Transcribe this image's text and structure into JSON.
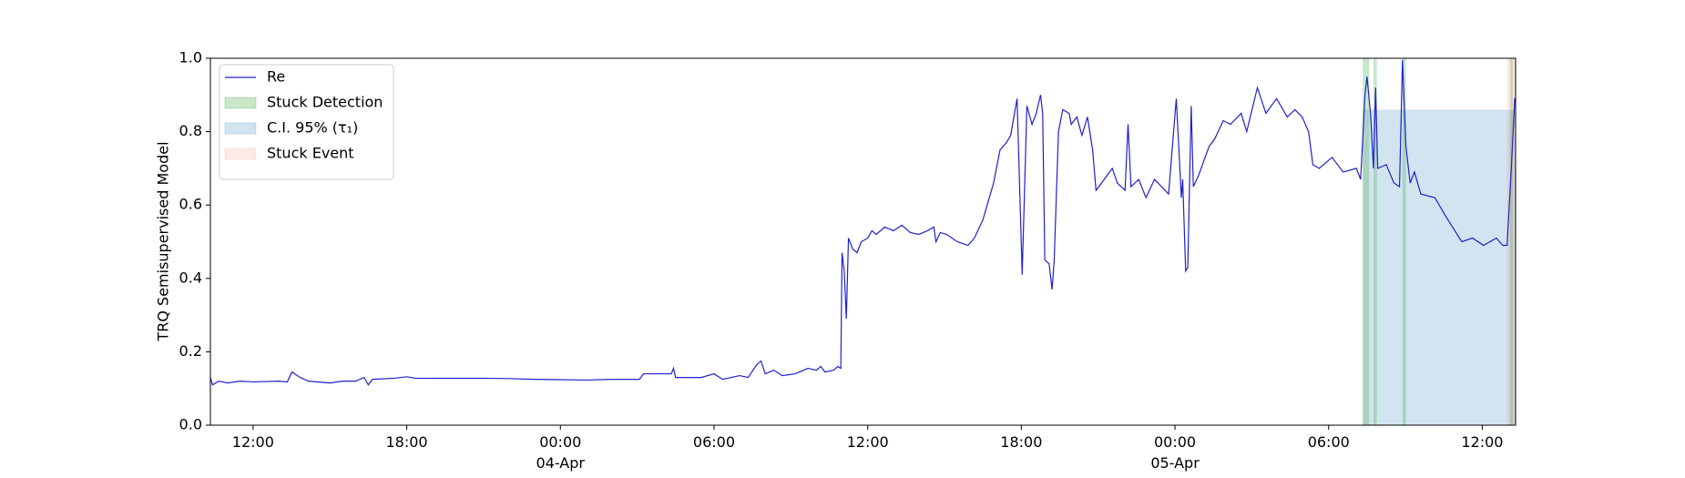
{
  "chart_data": {
    "type": "line",
    "ylabel": "TRQ Semisupervised Model",
    "xlim": [
      "1900-04-03 10:20",
      "1900-04-05 13:18"
    ],
    "ylim": [
      0,
      1
    ],
    "yticks": [
      {
        "value": 0,
        "label": "0.0"
      },
      {
        "value": 0.2,
        "label": "0.2"
      },
      {
        "value": 0.4,
        "label": "0.4"
      },
      {
        "value": 0.6,
        "label": "0.6"
      },
      {
        "value": 0.8,
        "label": "0.8"
      },
      {
        "value": 1,
        "label": "1.0"
      }
    ],
    "xticks": [
      {
        "value": "1900-04-03 12:00",
        "label": "12:00"
      },
      {
        "value": "1900-04-03 18:00",
        "label": "18:00"
      },
      {
        "value": "1900-04-04 00:00",
        "label": "00:00\n04-Apr\n1900"
      },
      {
        "value": "1900-04-04 06:00",
        "label": "06:00"
      },
      {
        "value": "1900-04-04 12:00",
        "label": "12:00"
      },
      {
        "value": "1900-04-04 18:00",
        "label": "18:00"
      },
      {
        "value": "1900-04-05 00:00",
        "label": "00:00\n05-Apr"
      },
      {
        "value": "1900-04-05 06:00",
        "label": "06:00"
      },
      {
        "value": "1900-04-05 12:00",
        "label": "12:00"
      }
    ],
    "legend": "upper left",
    "x": [
      "1900-04-03 10:20",
      "1900-04-03 10:25",
      "1900-04-03 10:40",
      "1900-04-03 11:00",
      "1900-04-03 11:30",
      "1900-04-03 12:00",
      "1900-04-03 13:00",
      "1900-04-03 13:20",
      "1900-04-03 13:31",
      "1900-04-03 13:50",
      "1900-04-03 14:10",
      "1900-04-03 15:00",
      "1900-04-03 15:30",
      "1900-04-03 16:00",
      "1900-04-03 16:20",
      "1900-04-03 16:30",
      "1900-04-03 16:40",
      "1900-04-03 17:30",
      "1900-04-03 18:00",
      "1900-04-03 18:20",
      "1900-04-03 19:00",
      "1900-04-03 21:00",
      "1900-04-03 22:00",
      "1900-04-03 23:00",
      "1900-04-04 00:00",
      "1900-04-04 01:00",
      "1900-04-04 02:00",
      "1900-04-04 03:05",
      "1900-04-04 03:15",
      "1900-04-04 04:00",
      "1900-04-04 04:20",
      "1900-04-04 04:25",
      "1900-04-04 04:30",
      "1900-04-04 05:00",
      "1900-04-04 05:30",
      "1900-04-04 06:00",
      "1900-04-04 06:20",
      "1900-04-04 07:00",
      "1900-04-04 07:20",
      "1900-04-04 07:40",
      "1900-04-04 07:50",
      "1900-04-04 08:00",
      "1900-04-04 08:20",
      "1900-04-04 08:40",
      "1900-04-04 09:10",
      "1900-04-04 09:40",
      "1900-04-04 10:00",
      "1900-04-04 10:10",
      "1900-04-04 10:20",
      "1900-04-04 10:40",
      "1900-04-04 10:50",
      "1900-04-04 10:57",
      "1900-04-04 11:00",
      "1900-04-04 11:05",
      "1900-04-04 11:10",
      "1900-04-04 11:15",
      "1900-04-04 11:25",
      "1900-04-04 11:35",
      "1900-04-04 11:45",
      "1900-04-04 12:00",
      "1900-04-04 12:10",
      "1900-04-04 12:20",
      "1900-04-04 12:40",
      "1900-04-04 13:00",
      "1900-04-04 13:20",
      "1900-04-04 13:40",
      "1900-04-04 14:00",
      "1900-04-04 14:20",
      "1900-04-04 14:35",
      "1900-04-04 14:40",
      "1900-04-04 14:50",
      "1900-04-04 15:05",
      "1900-04-04 15:30",
      "1900-04-04 15:55",
      "1900-04-04 16:10",
      "1900-04-04 16:30",
      "1900-04-04 16:40",
      "1900-04-04 16:55",
      "1900-04-04 17:10",
      "1900-04-04 17:25",
      "1900-04-04 17:35",
      "1900-04-04 17:50",
      "1900-04-04 18:02",
      "1900-04-04 18:13",
      "1900-04-04 18:25",
      "1900-04-04 18:35",
      "1900-04-04 18:45",
      "1900-04-04 18:50",
      "1900-04-04 18:55",
      "1900-04-04 19:05",
      "1900-04-04 19:12",
      "1900-04-04 19:17",
      "1900-04-04 19:27",
      "1900-04-04 19:37",
      "1900-04-04 19:52",
      "1900-04-04 19:57",
      "1900-04-04 20:10",
      "1900-04-04 20:22",
      "1900-04-04 20:35",
      "1900-04-04 20:47",
      "1900-04-04 20:55",
      "1900-04-04 21:08",
      "1900-04-04 21:33",
      "1900-04-04 21:45",
      "1900-04-04 22:03",
      "1900-04-04 22:10",
      "1900-04-04 22:17",
      "1900-04-04 22:35",
      "1900-04-04 22:52",
      "1900-04-04 23:12",
      "1900-04-04 23:45",
      "1900-04-05 00:03",
      "1900-04-05 00:15",
      "1900-04-05 00:18",
      "1900-04-05 00:25",
      "1900-04-05 00:30",
      "1900-04-05 00:38",
      "1900-04-05 00:43",
      "1900-04-05 00:55",
      "1900-04-05 01:20",
      "1900-04-05 01:33",
      "1900-04-05 01:53",
      "1900-04-05 02:10",
      "1900-04-05 02:35",
      "1900-04-05 02:48",
      "1900-04-05 03:13",
      "1900-04-05 03:33",
      "1900-04-05 03:58",
      "1900-04-05 04:23",
      "1900-04-05 04:41",
      "1900-04-05 04:58",
      "1900-04-05 05:13",
      "1900-04-05 05:23",
      "1900-04-05 05:38",
      "1900-04-05 06:08",
      "1900-04-05 06:34",
      "1900-04-05 07:05",
      "1900-04-05 07:15",
      "1900-04-05 07:25",
      "1900-04-05 07:30",
      "1900-04-05 07:38",
      "1900-04-05 07:45",
      "1900-04-05 07:50",
      "1900-04-05 07:55",
      "1900-04-05 08:15",
      "1900-04-05 08:33",
      "1900-04-05 08:46",
      "1900-04-05 08:53",
      "1900-04-05 09:01",
      "1900-04-05 09:11",
      "1900-04-05 09:21",
      "1900-04-05 09:36",
      "1900-04-05 10:09",
      "1900-04-05 10:34",
      "1900-04-05 11:12",
      "1900-04-05 11:37",
      "1900-04-05 12:03",
      "1900-04-05 12:33",
      "1900-04-05 12:48",
      "1900-04-05 12:58",
      "1900-04-05 13:08",
      "1900-04-05 13:16",
      "1900-04-05 13:18"
    ],
    "series": [
      {
        "name": "Re",
        "color": "#2020cc",
        "values": [
          0.13,
          0.11,
          0.12,
          0.115,
          0.12,
          0.118,
          0.12,
          0.118,
          0.145,
          0.13,
          0.12,
          0.115,
          0.12,
          0.12,
          0.13,
          0.11,
          0.125,
          0.128,
          0.132,
          0.128,
          0.128,
          0.128,
          0.127,
          0.125,
          0.124,
          0.123,
          0.125,
          0.125,
          0.14,
          0.14,
          0.14,
          0.155,
          0.13,
          0.13,
          0.13,
          0.14,
          0.125,
          0.135,
          0.13,
          0.165,
          0.175,
          0.14,
          0.15,
          0.135,
          0.14,
          0.155,
          0.15,
          0.16,
          0.145,
          0.15,
          0.16,
          0.155,
          0.47,
          0.42,
          0.29,
          0.51,
          0.48,
          0.47,
          0.5,
          0.51,
          0.53,
          0.52,
          0.54,
          0.53,
          0.545,
          0.525,
          0.52,
          0.53,
          0.54,
          0.5,
          0.525,
          0.52,
          0.5,
          0.49,
          0.51,
          0.56,
          0.6,
          0.66,
          0.75,
          0.77,
          0.79,
          0.89,
          0.41,
          0.87,
          0.82,
          0.85,
          0.9,
          0.85,
          0.45,
          0.44,
          0.37,
          0.45,
          0.8,
          0.86,
          0.85,
          0.82,
          0.84,
          0.79,
          0.84,
          0.75,
          0.64,
          0.66,
          0.7,
          0.66,
          0.64,
          0.82,
          0.65,
          0.67,
          0.62,
          0.67,
          0.63,
          0.89,
          0.62,
          0.67,
          0.42,
          0.43,
          0.87,
          0.65,
          0.68,
          0.76,
          0.78,
          0.83,
          0.82,
          0.85,
          0.8,
          0.92,
          0.85,
          0.89,
          0.84,
          0.86,
          0.84,
          0.8,
          0.71,
          0.7,
          0.73,
          0.69,
          0.7,
          0.67,
          0.9,
          0.95,
          0.85,
          0.7,
          0.92,
          0.7,
          0.71,
          0.66,
          0.65,
          0.995,
          0.76,
          0.66,
          0.69,
          0.63,
          0.62,
          0.57,
          0.5,
          0.51,
          0.49,
          0.51,
          0.49,
          0.49,
          0.7,
          0.89,
          0.89
        ]
      }
    ],
    "regions": [
      {
        "name": "Stuck Detection",
        "color": "#2ca02c",
        "alpha": 0.25,
        "spans": [
          [
            "1900-04-05 07:20",
            "1900-04-05 07:35"
          ],
          [
            "1900-04-05 07:45",
            "1900-04-05 07:53"
          ],
          [
            "1900-04-05 08:53",
            "1900-04-05 09:01"
          ],
          [
            "1900-04-05 13:05",
            "1900-04-05 13:12"
          ]
        ]
      },
      {
        "name": "C.I. 95% (τ₁)",
        "color": "#1f77b4",
        "alpha": 0.2,
        "y_range": [
          0,
          0.86
        ],
        "spans": [
          [
            "1900-04-05 07:20",
            "1900-04-05 13:18"
          ]
        ]
      },
      {
        "name": "Stuck Event",
        "color": "#ff4444",
        "alpha": 0.12,
        "spans": [
          [
            "1900-04-05 12:58",
            "1900-04-05 13:18"
          ]
        ]
      }
    ]
  }
}
